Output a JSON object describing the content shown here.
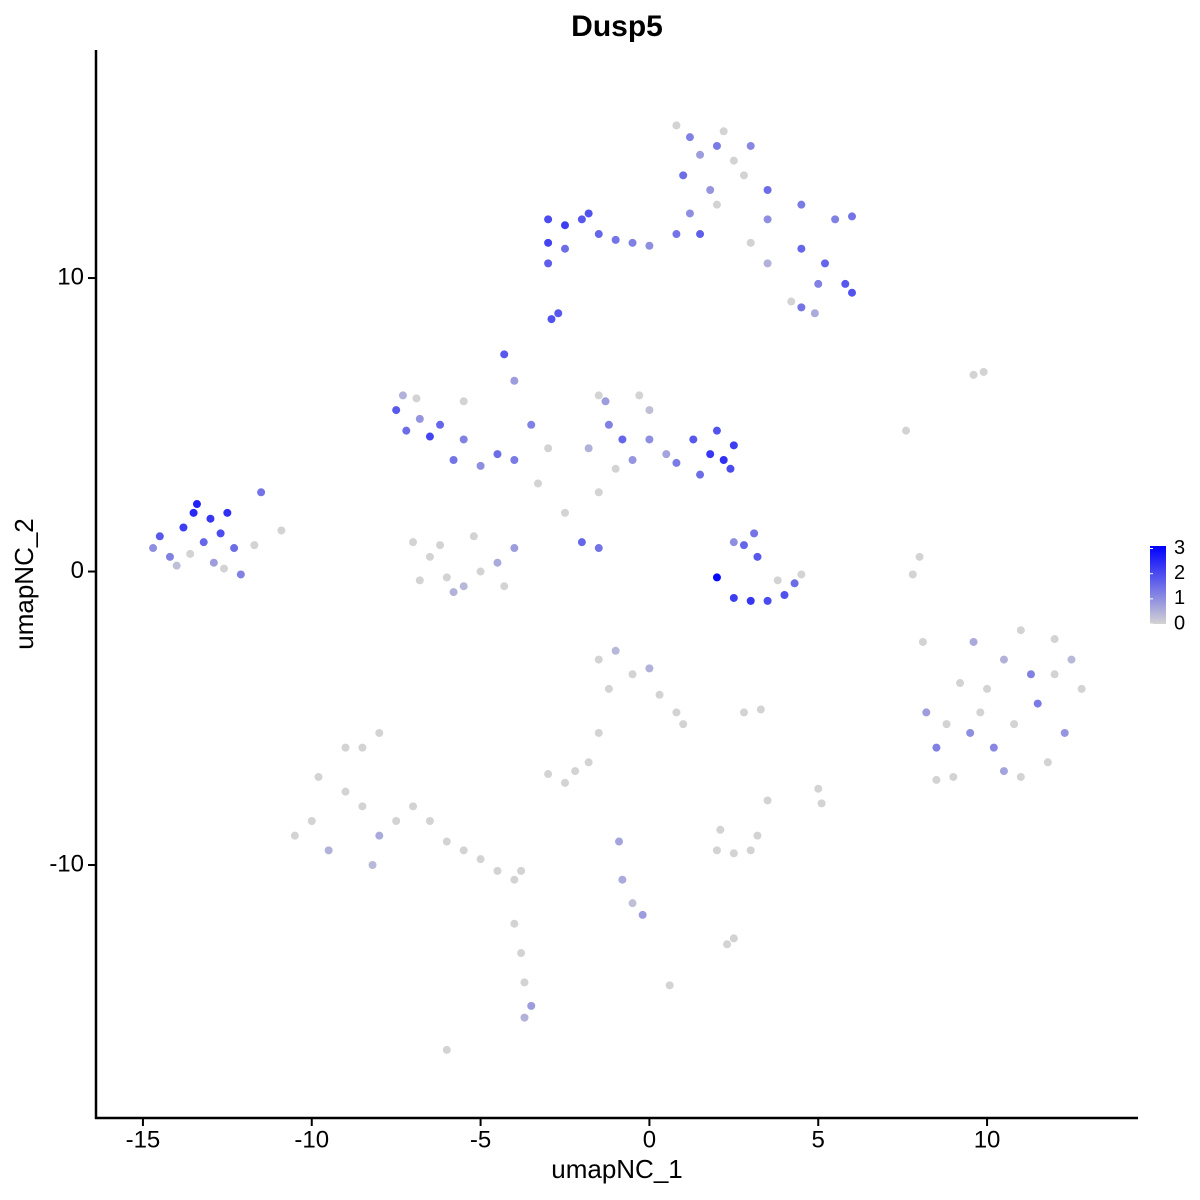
{
  "chart_data": {
    "type": "scatter",
    "title": "Dusp5",
    "x_label": "umapNC_1",
    "y_label": "umapNC_2",
    "xlim": [
      -16.39,
      14.47
    ],
    "ylim": [
      -18.62,
      17.77
    ],
    "xticks": [
      -15,
      -10,
      -5,
      0,
      5,
      10
    ],
    "yticks": [
      -10,
      0,
      10
    ],
    "color_scale": {
      "low": "#d3d3d3",
      "high": "#0000ff",
      "lim": [
        0,
        3.1
      ],
      "ticks": [
        0,
        1,
        2,
        3
      ]
    },
    "x": [
      -14.5,
      -14.2,
      -13.8,
      -13.5,
      -13.2,
      -13.0,
      -12.7,
      -12.5,
      -12.9,
      -14.0,
      -12.3,
      -12.1,
      -11.5,
      -13.4,
      -14.7,
      -13.6,
      -12.6,
      -11.7,
      -7.5,
      -7.2,
      -6.8,
      -6.5,
      -7.3,
      -6.2,
      -5.5,
      -5.8,
      -5.0,
      -4.5,
      -4.0,
      -4.3,
      -4.0,
      -3.5,
      -5.5,
      -6.9,
      -3.0,
      -3.3,
      -2.5,
      -2.0,
      -1.5,
      -1.5,
      -7.0,
      -6.5,
      -6.0,
      -5.5,
      -5.0,
      -4.5,
      -4.0,
      -6.8,
      -6.2,
      -5.2,
      -4.3,
      -5.8,
      -1.5,
      -1.2,
      -0.8,
      -0.5,
      0,
      0.5,
      -1.0,
      -1.3,
      0.8,
      1.3,
      1.8,
      2.2,
      2.5,
      2.0,
      2.4,
      1.5,
      -1.8,
      0,
      -0.3,
      2.0,
      2.5,
      3.0,
      3.5,
      4.0,
      4.3,
      4.5,
      2.8,
      3.2,
      3.1,
      2.5,
      3.8,
      0.8,
      1.2,
      1.5,
      2.0,
      2.5,
      1.0,
      1.8,
      2.2,
      3.0,
      2.8,
      1.2,
      0.8,
      1.5,
      2.0,
      3.5,
      4.5,
      5.5,
      6.0,
      3.5,
      4.5,
      5.2,
      5.8,
      6.0,
      5.0,
      4.5,
      4.9,
      4.2,
      3.5,
      3.0,
      -3.0,
      -2.5,
      -2.0,
      -3.0,
      -2.5,
      -1.5,
      -1.0,
      -0.5,
      0,
      -1.8,
      -3.0,
      -2.9,
      -2.7,
      8.2,
      8.5,
      9.0,
      9.5,
      10,
      10.5,
      11,
      11.5,
      12,
      12.5,
      12.8,
      12.3,
      11.8,
      11,
      10.2,
      10.8,
      9.8,
      11.3,
      9.2,
      10.5,
      8.8,
      12.0,
      9.6,
      8.5,
      -10.5,
      -10,
      -9.5,
      -9,
      -8.5,
      -8.5,
      -8,
      -8,
      -9,
      -7.5,
      -7,
      -6.5,
      -6,
      -5.5,
      -5,
      -4.5,
      -4,
      -3.8,
      -4,
      -3.8,
      -3.7,
      -3.5,
      -3.7,
      -9.8,
      -8.2,
      -1.5,
      -1,
      -0.5,
      0,
      -1.2,
      0.3,
      0.8,
      1.0,
      -1.5,
      -1.8,
      -3,
      -2.5,
      -2.2,
      2.0,
      2.5,
      3.0,
      3.2,
      2.1,
      -0.9,
      -0.8,
      -0.5,
      -0.2,
      2.5,
      2.3,
      0.6,
      -6.0,
      9.6,
      9.9,
      8,
      7.8,
      8.1,
      5.0,
      5.1,
      2.8,
      3.3,
      -10.9,
      7.6,
      3.5
    ],
    "values": [
      1.2,
      0.5,
      1.5,
      2.0,
      1.0,
      1.8,
      1.3,
      2.0,
      0.3,
      0.2,
      0.8,
      -0.1,
      2.7,
      2.3,
      0.8,
      0.6,
      0.1,
      0.9,
      5.5,
      4.8,
      5.2,
      4.6,
      6.0,
      5.0,
      4.5,
      3.8,
      3.6,
      4.0,
      3.8,
      7.4,
      6.5,
      5.0,
      5.8,
      5.9,
      4.2,
      3.0,
      2.0,
      1.0,
      0.8,
      2.7,
      1.0,
      0.5,
      -0.2,
      -0.5,
      0,
      0.3,
      0.8,
      -0.3,
      0.9,
      1.2,
      -0.5,
      -0.7,
      6.0,
      5.0,
      4.5,
      3.8,
      4.5,
      4.0,
      3.5,
      5.8,
      3.7,
      4.5,
      4.0,
      3.8,
      4.3,
      4.8,
      3.5,
      3.3,
      4.2,
      5.5,
      6.0,
      -0.2,
      -0.9,
      -1.0,
      -1.0,
      -0.8,
      -0.4,
      -0.1,
      0.9,
      0.5,
      1.3,
      1.0,
      -0.3,
      15.2,
      14.8,
      14.2,
      14.5,
      14.0,
      13.5,
      13.0,
      15.0,
      14.5,
      13.5,
      12.2,
      11.5,
      11.5,
      12.5,
      13.0,
      12.5,
      12.0,
      12.1,
      12.0,
      11.0,
      10.5,
      9.8,
      9.5,
      9.8,
      9.0,
      8.8,
      9.2,
      10.5,
      11.2,
      12.0,
      11.8,
      12.0,
      11.2,
      11.0,
      11.5,
      11.3,
      11.2,
      11.1,
      12.2,
      10.5,
      8.6,
      8.8,
      -4.8,
      -6.0,
      -7.0,
      -5.5,
      -4.0,
      -3.0,
      -2.0,
      -4.5,
      -3.5,
      -3.0,
      -4.0,
      -5.5,
      -6.5,
      -7.0,
      -6.0,
      -5.2,
      -4.8,
      -3.5,
      -3.8,
      -6.8,
      -5.2,
      -2.3,
      -2.4,
      -7.1,
      -9.0,
      -8.5,
      -9.5,
      -7.5,
      -8.0,
      -6.0,
      -5.5,
      -9.0,
      -6.0,
      -8.5,
      -8.0,
      -8.5,
      -9.2,
      -9.5,
      -9.8,
      -10.2,
      -10.5,
      -10.2,
      -12,
      -13,
      -14,
      -14.8,
      -15.2,
      -7.0,
      -10,
      -3.0,
      -2.7,
      -3.5,
      -3.3,
      -4.0,
      -4.2,
      -4.8,
      -5.2,
      -5.5,
      -6.5,
      -6.9,
      -7.2,
      -6.8,
      -9.5,
      -9.6,
      -9.5,
      -9.0,
      -8.8,
      -9.2,
      -10.5,
      -11.3,
      -11.7,
      -12.5,
      -12.7,
      -14.1,
      -16.3,
      6.7,
      6.8,
      0.5,
      -0.1,
      -2.4,
      -7.4,
      -7.9,
      -4.8,
      -4.7,
      1.4,
      4.8,
      -7.8
    ],
    "expression": [
      1.8,
      1.2,
      2.2,
      2.5,
      1.6,
      2.3,
      2.0,
      2.4,
      0.8,
      0.3,
      1.5,
      1.2,
      1.4,
      2.6,
      1.0,
      0,
      0,
      0,
      1.8,
      1.5,
      0.9,
      2.1,
      0.5,
      1.6,
      1.2,
      1.4,
      1.0,
      1.5,
      1.3,
      1.8,
      0.8,
      1.2,
      0,
      0,
      0,
      0,
      0,
      1.6,
      1.4,
      0,
      0,
      0,
      0,
      0.4,
      0,
      0.6,
      0.8,
      0,
      0,
      0,
      0,
      0.5,
      0,
      1.2,
      1.6,
      0.9,
      1.0,
      0.7,
      0,
      0.8,
      1.3,
      1.8,
      2.3,
      2.4,
      2.2,
      1.9,
      2.0,
      1.5,
      0.5,
      0.3,
      0,
      3.0,
      2.2,
      2.3,
      2.0,
      1.9,
      1.5,
      0,
      1.6,
      1.8,
      1.4,
      1.0,
      0,
      0,
      1.2,
      0.8,
      1.3,
      0,
      1.5,
      0.9,
      0,
      1.1,
      0,
      1.0,
      1.4,
      1.7,
      0,
      1.5,
      1.3,
      1.2,
      1.4,
      1.0,
      1.6,
      1.6,
      1.8,
      1.9,
      1.2,
      1.4,
      0.6,
      0,
      0.5,
      0,
      2.0,
      2.2,
      1.8,
      2.1,
      1.5,
      1.6,
      1.4,
      1.2,
      1.0,
      1.9,
      1.7,
      1.9,
      1.8,
      0.8,
      1.2,
      0,
      1.0,
      0,
      0.5,
      0,
      1.3,
      0,
      0.4,
      0,
      0.9,
      0,
      0,
      1.1,
      0,
      0,
      1.2,
      0,
      0.7,
      0,
      0,
      0.6,
      0,
      0,
      0,
      0.5,
      0,
      0,
      0,
      0,
      0.6,
      0,
      0,
      0,
      0,
      0,
      0,
      0,
      0,
      0,
      0,
      0,
      0,
      0,
      0.8,
      0.5,
      0,
      0.4,
      0,
      0.4,
      0,
      0.5,
      0,
      0,
      0,
      0,
      0,
      0,
      0,
      0,
      0,
      0,
      0,
      0,
      0,
      0,
      0.7,
      0.6,
      0.3,
      0.8,
      0,
      0,
      0,
      0,
      0,
      0,
      0,
      0,
      0,
      0,
      0,
      0,
      0,
      0,
      0,
      0
    ]
  }
}
